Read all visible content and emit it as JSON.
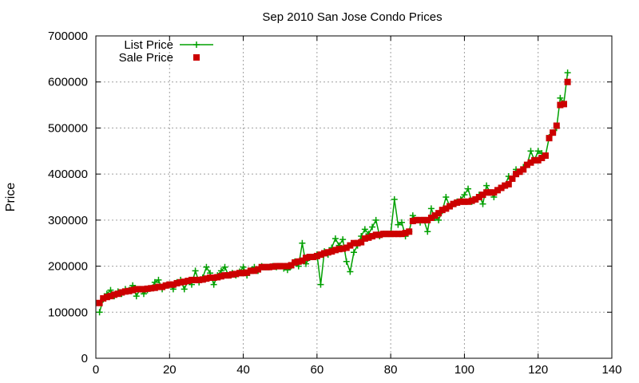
{
  "chart_data": {
    "type": "line",
    "title": "Sep 2010 San Jose Condo Prices",
    "xlabel": "",
    "ylabel": "Price",
    "xlim": [
      0,
      140
    ],
    "ylim": [
      0,
      700000
    ],
    "xticks": [
      0,
      20,
      40,
      60,
      80,
      100,
      120,
      140
    ],
    "yticks": [
      0,
      100000,
      200000,
      300000,
      400000,
      500000,
      600000,
      700000
    ],
    "grid": true,
    "legend_position": "top-left",
    "series": [
      {
        "name": "List Price",
        "style": "line-plus",
        "color": "#00a000",
        "x": [
          1,
          2,
          3,
          4,
          5,
          6,
          7,
          8,
          9,
          10,
          11,
          12,
          13,
          14,
          15,
          16,
          17,
          18,
          19,
          20,
          21,
          22,
          23,
          24,
          25,
          26,
          27,
          28,
          29,
          30,
          31,
          32,
          33,
          34,
          35,
          36,
          37,
          38,
          39,
          40,
          41,
          42,
          43,
          44,
          45,
          46,
          47,
          48,
          49,
          50,
          51,
          52,
          53,
          54,
          55,
          56,
          57,
          58,
          59,
          60,
          61,
          62,
          63,
          64,
          65,
          66,
          67,
          68,
          69,
          70,
          71,
          72,
          73,
          74,
          75,
          76,
          77,
          78,
          79,
          80,
          81,
          82,
          83,
          84,
          85,
          86,
          87,
          88,
          89,
          90,
          91,
          92,
          93,
          94,
          95,
          96,
          97,
          98,
          99,
          100,
          101,
          102,
          103,
          104,
          105,
          106,
          107,
          108,
          109,
          110,
          111,
          112,
          113,
          114,
          115,
          116,
          117,
          118,
          119,
          120,
          121,
          122,
          123,
          124,
          125,
          126,
          127,
          128
        ],
        "values": [
          100000,
          128000,
          140000,
          148000,
          135000,
          145000,
          140000,
          150000,
          148000,
          158000,
          135000,
          150000,
          140000,
          148000,
          152000,
          165000,
          170000,
          150000,
          158000,
          160000,
          150000,
          165000,
          170000,
          150000,
          168000,
          160000,
          190000,
          165000,
          175000,
          198000,
          185000,
          160000,
          180000,
          190000,
          198000,
          180000,
          185000,
          180000,
          188000,
          198000,
          180000,
          190000,
          198000,
          190000,
          200000,
          198000,
          198000,
          200000,
          198000,
          200000,
          195000,
          192000,
          200000,
          210000,
          200000,
          250000,
          205000,
          218000,
          220000,
          225000,
          160000,
          232000,
          225000,
          240000,
          260000,
          245000,
          258000,
          210000,
          188000,
          230000,
          245000,
          265000,
          280000,
          270000,
          285000,
          300000,
          265000,
          270000,
          270000,
          270000,
          345000,
          290000,
          295000,
          265000,
          275000,
          310000,
          300000,
          295000,
          300000,
          275000,
          325000,
          305000,
          300000,
          320000,
          350000,
          330000,
          335000,
          340000,
          345000,
          355000,
          368000,
          340000,
          345000,
          355000,
          335000,
          375000,
          360000,
          350000,
          365000,
          370000,
          375000,
          395000,
          390000,
          410000,
          405000,
          415000,
          420000,
          450000,
          430000,
          450000,
          445000,
          440000,
          480000,
          490000,
          500000,
          565000,
          555000,
          620000
        ]
      },
      {
        "name": "Sale Price",
        "style": "points-square",
        "color": "#cc0000",
        "x": [
          1,
          2,
          3,
          4,
          5,
          6,
          7,
          8,
          9,
          10,
          11,
          12,
          13,
          14,
          15,
          16,
          17,
          18,
          19,
          20,
          21,
          22,
          23,
          24,
          25,
          26,
          27,
          28,
          29,
          30,
          31,
          32,
          33,
          34,
          35,
          36,
          37,
          38,
          39,
          40,
          41,
          42,
          43,
          44,
          45,
          46,
          47,
          48,
          49,
          50,
          51,
          52,
          53,
          54,
          55,
          56,
          57,
          58,
          59,
          60,
          61,
          62,
          63,
          64,
          65,
          66,
          67,
          68,
          69,
          70,
          71,
          72,
          73,
          74,
          75,
          76,
          77,
          78,
          79,
          80,
          81,
          82,
          83,
          84,
          85,
          86,
          87,
          88,
          89,
          90,
          91,
          92,
          93,
          94,
          95,
          96,
          97,
          98,
          99,
          100,
          101,
          102,
          103,
          104,
          105,
          106,
          107,
          108,
          109,
          110,
          111,
          112,
          113,
          114,
          115,
          116,
          117,
          118,
          119,
          120,
          121,
          122,
          123,
          124,
          125,
          126,
          127,
          128
        ],
        "values": [
          120000,
          130000,
          133000,
          135000,
          138000,
          140000,
          143000,
          145000,
          146000,
          148000,
          150000,
          150000,
          150000,
          151000,
          152000,
          153000,
          155000,
          155000,
          158000,
          160000,
          160000,
          163000,
          165000,
          166000,
          168000,
          170000,
          170000,
          170000,
          171000,
          173000,
          175000,
          175000,
          176000,
          178000,
          180000,
          180000,
          182000,
          183000,
          185000,
          185000,
          186000,
          190000,
          190000,
          193000,
          198000,
          198000,
          198000,
          199000,
          200000,
          200000,
          200000,
          200000,
          202000,
          208000,
          210000,
          212000,
          218000,
          220000,
          220000,
          222000,
          225000,
          228000,
          230000,
          232000,
          235000,
          237000,
          238000,
          240000,
          245000,
          250000,
          250000,
          252000,
          260000,
          262000,
          265000,
          268000,
          268000,
          270000,
          270000,
          270000,
          270000,
          270000,
          270000,
          272000,
          275000,
          298000,
          300000,
          300000,
          300000,
          300000,
          305000,
          310000,
          315000,
          322000,
          325000,
          330000,
          335000,
          338000,
          340000,
          340000,
          340000,
          342000,
          345000,
          350000,
          355000,
          360000,
          360000,
          360000,
          365000,
          370000,
          375000,
          378000,
          390000,
          400000,
          405000,
          410000,
          420000,
          425000,
          430000,
          430000,
          435000,
          440000,
          478000,
          490000,
          505000,
          550000,
          552000,
          600000
        ]
      }
    ]
  }
}
